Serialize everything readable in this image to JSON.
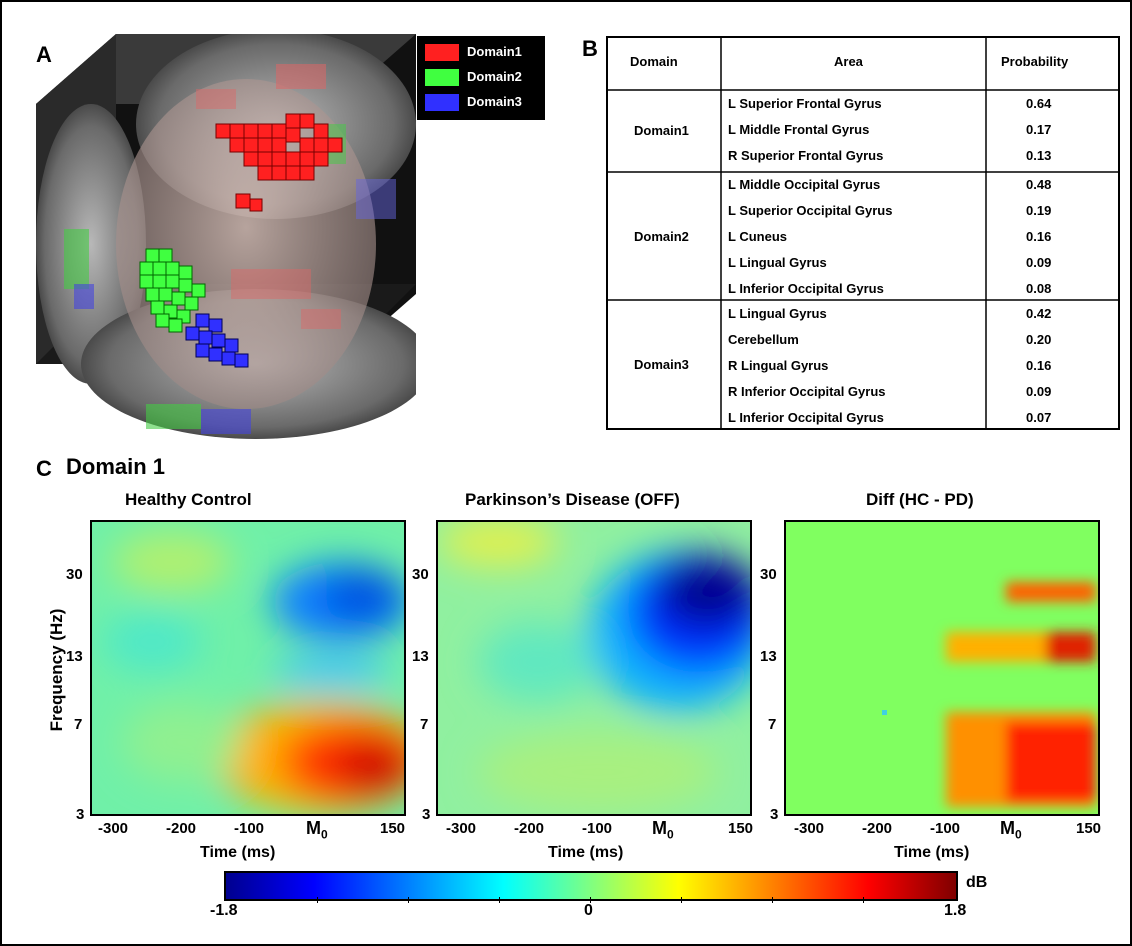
{
  "panels": {
    "a": "A",
    "b": "B",
    "c": "C"
  },
  "legend": [
    {
      "label": "Domain1",
      "color": "#ff2020"
    },
    {
      "label": "Domain2",
      "color": "#40ff40"
    },
    {
      "label": "Domain3",
      "color": "#3030ff"
    }
  ],
  "table": {
    "headers": [
      "Domain",
      "Area",
      "Probability"
    ],
    "groups": [
      {
        "domain": "Domain1",
        "rows": [
          {
            "area": "L Superior Frontal Gyrus",
            "p": "0.64"
          },
          {
            "area": "L Middle Frontal Gyrus",
            "p": "0.17"
          },
          {
            "area": "R Superior Frontal Gyrus",
            "p": "0.13"
          }
        ]
      },
      {
        "domain": "Domain2",
        "rows": [
          {
            "area": "L Middle Occipital Gyrus",
            "p": "0.48"
          },
          {
            "area": "L Superior Occipital Gyrus",
            "p": "0.19"
          },
          {
            "area": "L Cuneus",
            "p": "0.16"
          },
          {
            "area": "L Lingual Gyrus",
            "p": "0.09"
          },
          {
            "area": "L Inferior Occipital Gyrus",
            "p": "0.08"
          }
        ]
      },
      {
        "domain": "Domain3",
        "rows": [
          {
            "area": "L Lingual Gyrus",
            "p": "0.42"
          },
          {
            "area": "Cerebellum",
            "p": "0.20"
          },
          {
            "area": "R Lingual Gyrus",
            "p": "0.16"
          },
          {
            "area": "R Inferior Occipital Gyrus",
            "p": "0.09"
          },
          {
            "area": "L Inferior Occipital Gyrus",
            "p": "0.07"
          }
        ]
      }
    ]
  },
  "section_c": {
    "title": "Domain 1"
  },
  "chart_data": [
    {
      "type": "heatmap",
      "title": "Healthy Control",
      "xlabel": "Time (ms)",
      "ylabel": "Frequency (Hz)",
      "x_ticks": [
        "-300",
        "-200",
        "-100",
        "M0",
        "150"
      ],
      "y_ticks": [
        "30",
        "13",
        "7",
        "3"
      ]
    },
    {
      "type": "heatmap",
      "title": "Parkinson’s Disease (OFF)",
      "xlabel": "Time (ms)",
      "ylabel": "",
      "x_ticks": [
        "-300",
        "-200",
        "-100",
        "M0",
        "150"
      ],
      "y_ticks": [
        "30",
        "13",
        "7",
        "3"
      ]
    },
    {
      "type": "heatmap",
      "title": "Diff (HC - PD)",
      "xlabel": "Time (ms)",
      "ylabel": "",
      "x_ticks": [
        "-300",
        "-200",
        "-100",
        "M0",
        "150"
      ],
      "y_ticks": [
        "30",
        "13",
        "7",
        "3"
      ]
    }
  ],
  "colorbar": {
    "min": "-1.8",
    "mid": "0",
    "max": "1.8",
    "unit": "dB"
  }
}
